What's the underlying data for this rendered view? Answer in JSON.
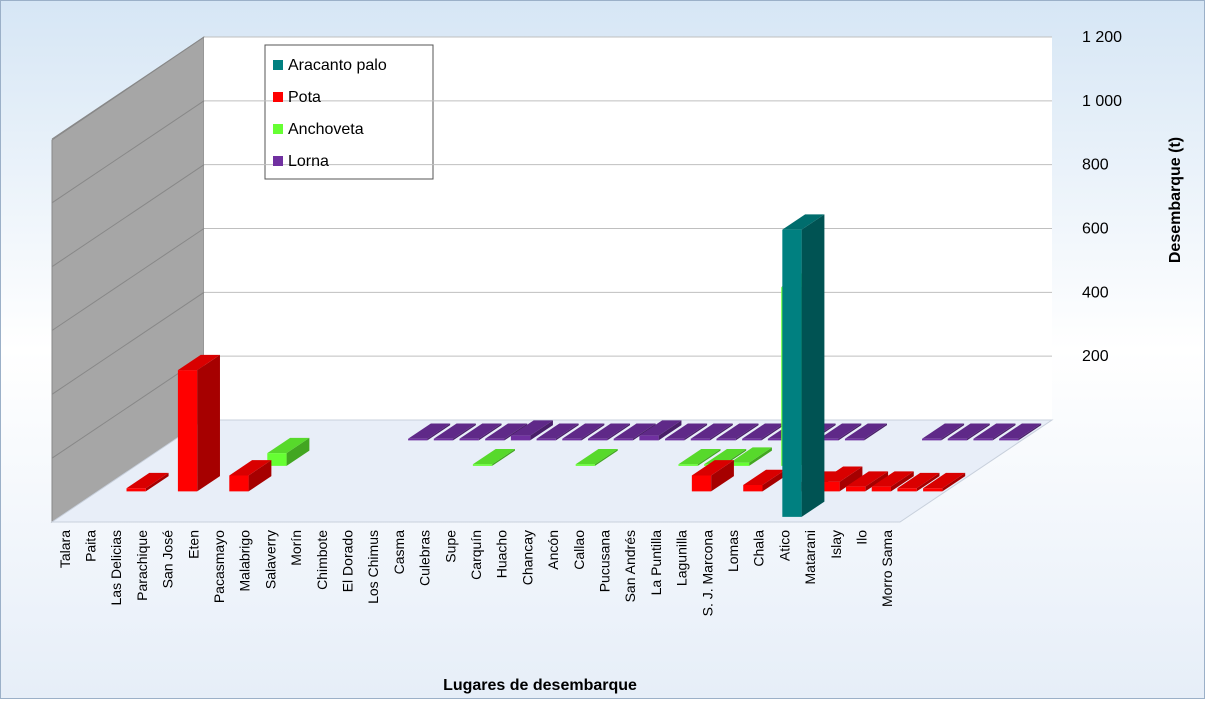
{
  "chart_data": {
    "type": "bar3d",
    "y_axis_label": "Desembarque (t)",
    "x_axis_label": "Lugares de desembarque",
    "categories": [
      "Talara",
      "Paita",
      "Las Delicias",
      "Parachique",
      "San José",
      "Eten",
      "Pacasmayo",
      "Malabrigo",
      "Salaverry",
      "Morín",
      "Chimbote",
      "El Dorado",
      "Los Chimus",
      "Casma",
      "Culebras",
      "Supe",
      "Carquín",
      "Huacho",
      "Chancay",
      "Ancón",
      "Callao",
      "Pucusana",
      "San Andrés",
      "La Puntilla",
      "Lagunilla",
      "S. J. Marcona",
      "Lomas",
      "Chala",
      "Atico",
      "Matarani",
      "Islay",
      "Ilo",
      "Morro Sama"
    ],
    "series": [
      {
        "name": "Aracanto palo",
        "color": "#008080",
        "values": [
          null,
          null,
          null,
          null,
          null,
          null,
          null,
          null,
          null,
          null,
          null,
          null,
          null,
          null,
          null,
          null,
          null,
          null,
          null,
          null,
          null,
          null,
          null,
          null,
          null,
          null,
          null,
          null,
          900,
          null,
          null,
          null,
          null
        ]
      },
      {
        "name": "Pota",
        "color": "#ff0000",
        "values": [
          null,
          10,
          null,
          380,
          null,
          50,
          null,
          null,
          null,
          null,
          null,
          null,
          null,
          null,
          null,
          null,
          null,
          null,
          null,
          null,
          null,
          null,
          null,
          50,
          null,
          20,
          null,
          15,
          30,
          15,
          15,
          10,
          10
        ]
      },
      {
        "name": "Anchoveta",
        "color": "#66ff33",
        "values": [
          null,
          null,
          null,
          null,
          null,
          40,
          null,
          null,
          null,
          null,
          null,
          null,
          null,
          5,
          null,
          null,
          null,
          5,
          null,
          null,
          null,
          5,
          5,
          10,
          null,
          560,
          null,
          null,
          null,
          null,
          null,
          null,
          null
        ]
      },
      {
        "name": "Lorna",
        "color": "#7030a0",
        "values": [
          null,
          null,
          null,
          null,
          null,
          null,
          null,
          null,
          null,
          5,
          5,
          5,
          5,
          15,
          5,
          5,
          5,
          5,
          15,
          5,
          5,
          5,
          5,
          5,
          5,
          5,
          5,
          null,
          null,
          5,
          5,
          5,
          5
        ]
      }
    ],
    "ylim": [
      0,
      1200
    ],
    "yticks": [
      200,
      400,
      600,
      800,
      {
        "value": 1000,
        "label": "1 000"
      },
      {
        "value": 1200,
        "label": "1 200"
      }
    ],
    "grid": true
  }
}
